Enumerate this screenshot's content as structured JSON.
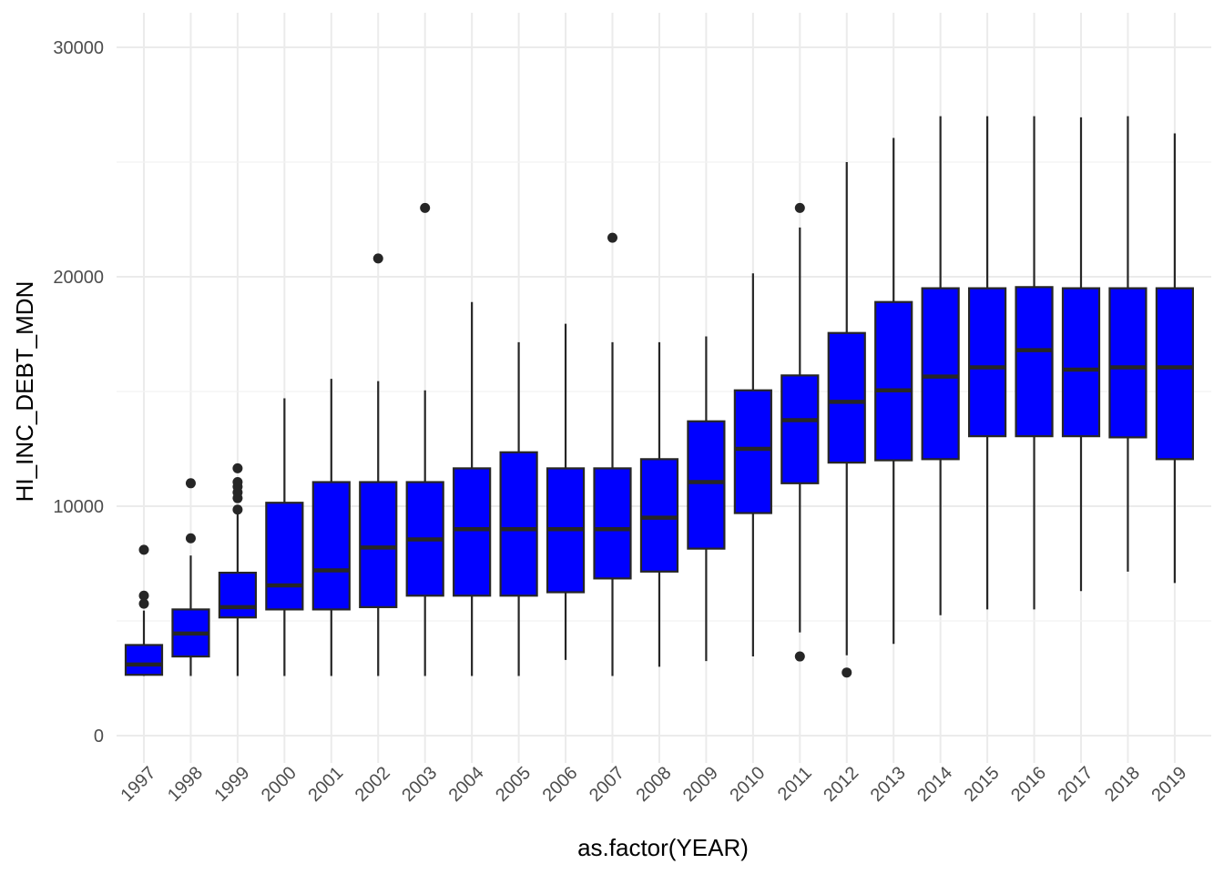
{
  "chart_data": {
    "type": "boxplot",
    "title": "",
    "xlabel": "as.factor(YEAR)",
    "ylabel": "HI_INC_DEBT_MDN",
    "ylim": [
      -1000,
      31500
    ],
    "yticks": [
      0,
      10000,
      20000,
      30000
    ],
    "ytick_labels": [
      "0",
      "10000",
      "20000",
      "30000"
    ],
    "grid": true,
    "box_fill": "#0000ff",
    "line_color": "#262626",
    "categories": [
      "1997",
      "1998",
      "1999",
      "2000",
      "2001",
      "2002",
      "2003",
      "2004",
      "2005",
      "2006",
      "2007",
      "2008",
      "2009",
      "2010",
      "2011",
      "2012",
      "2013",
      "2014",
      "2015",
      "2016",
      "2017",
      "2018",
      "2019"
    ],
    "boxes": [
      {
        "year": "1997",
        "min": 2600,
        "q1": 2650,
        "median": 3100,
        "q3": 3950,
        "max": 5450,
        "outliers": [
          5750,
          6100,
          8100
        ]
      },
      {
        "year": "1998",
        "min": 2600,
        "q1": 3450,
        "median": 4450,
        "q3": 5500,
        "max": 7850,
        "outliers": [
          8600,
          11000
        ]
      },
      {
        "year": "1999",
        "min": 2600,
        "q1": 5150,
        "median": 5600,
        "q3": 7100,
        "max": 9800,
        "outliers": [
          9850,
          10350,
          10600,
          10850,
          11050,
          11650
        ]
      },
      {
        "year": "2000",
        "min": 2600,
        "q1": 5500,
        "median": 6550,
        "q3": 10150,
        "max": 14700,
        "outliers": []
      },
      {
        "year": "2001",
        "min": 2600,
        "q1": 5500,
        "median": 7200,
        "q3": 11050,
        "max": 15550,
        "outliers": []
      },
      {
        "year": "2002",
        "min": 2600,
        "q1": 5600,
        "median": 8200,
        "q3": 11050,
        "max": 15450,
        "outliers": [
          20800
        ]
      },
      {
        "year": "2003",
        "min": 2600,
        "q1": 6100,
        "median": 8550,
        "q3": 11050,
        "max": 15050,
        "outliers": [
          23000
        ]
      },
      {
        "year": "2004",
        "min": 2600,
        "q1": 6100,
        "median": 9000,
        "q3": 11650,
        "max": 18900,
        "outliers": []
      },
      {
        "year": "2005",
        "min": 2600,
        "q1": 6100,
        "median": 9000,
        "q3": 12350,
        "max": 17150,
        "outliers": []
      },
      {
        "year": "2006",
        "min": 3300,
        "q1": 6250,
        "median": 9000,
        "q3": 11650,
        "max": 17950,
        "outliers": []
      },
      {
        "year": "2007",
        "min": 2600,
        "q1": 6850,
        "median": 9000,
        "q3": 11650,
        "max": 17150,
        "outliers": [
          21700
        ]
      },
      {
        "year": "2008",
        "min": 3000,
        "q1": 7150,
        "median": 9500,
        "q3": 12050,
        "max": 17150,
        "outliers": []
      },
      {
        "year": "2009",
        "min": 3250,
        "q1": 8150,
        "median": 11050,
        "q3": 13700,
        "max": 17400,
        "outliers": []
      },
      {
        "year": "2010",
        "min": 3450,
        "q1": 9700,
        "median": 12500,
        "q3": 15050,
        "max": 20150,
        "outliers": []
      },
      {
        "year": "2011",
        "min": 4500,
        "q1": 11000,
        "median": 13750,
        "q3": 15700,
        "max": 22150,
        "outliers": [
          3450,
          23000
        ]
      },
      {
        "year": "2012",
        "min": 3500,
        "q1": 11900,
        "median": 14550,
        "q3": 17550,
        "max": 25000,
        "outliers": [
          2750
        ]
      },
      {
        "year": "2013",
        "min": 4000,
        "q1": 12000,
        "median": 15050,
        "q3": 18900,
        "max": 26050,
        "outliers": []
      },
      {
        "year": "2014",
        "min": 5250,
        "q1": 12050,
        "median": 15650,
        "q3": 19500,
        "max": 27000,
        "outliers": []
      },
      {
        "year": "2015",
        "min": 5500,
        "q1": 13050,
        "median": 16050,
        "q3": 19500,
        "max": 27000,
        "outliers": []
      },
      {
        "year": "2016",
        "min": 5500,
        "q1": 13050,
        "median": 16800,
        "q3": 19550,
        "max": 27000,
        "outliers": []
      },
      {
        "year": "2017",
        "min": 6300,
        "q1": 13050,
        "median": 15950,
        "q3": 19500,
        "max": 26950,
        "outliers": []
      },
      {
        "year": "2018",
        "min": 7150,
        "q1": 13000,
        "median": 16050,
        "q3": 19500,
        "max": 27000,
        "outliers": []
      },
      {
        "year": "2019",
        "min": 6650,
        "q1": 12050,
        "median": 16050,
        "q3": 19500,
        "max": 26250,
        "outliers": []
      }
    ]
  }
}
